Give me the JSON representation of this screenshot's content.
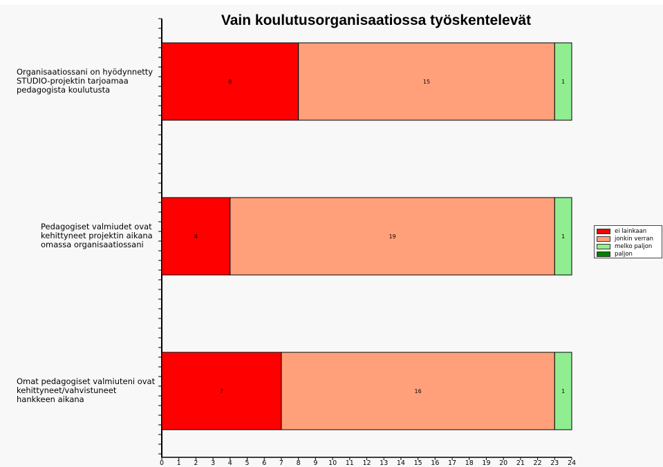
{
  "chart_data": {
    "type": "bar",
    "orientation": "horizontal",
    "stacked": true,
    "title": "Vain koulutusorganisaatiossa työskentelevät",
    "categories": [
      "Organisaatiossani on hyödynnetty STUDIO-projektin tarjoamaa pedagogista koulutusta",
      "Pedagogiset valmiudet ovat kehittyneet projektin aikana omassa organisaatiossani",
      "Omat pedagogiset valmiuteni ovat kehittyneet/vahvistuneet hankkeen aikana"
    ],
    "category_lines": [
      [
        "Organisaatiossani on hyödynnetty",
        "STUDIO-projektin tarjoamaa",
        "pedagogista koulutusta"
      ],
      [
        "Pedagogiset valmiudet ovat",
        "kehittyneet projektin aikana",
        "omassa organisaatiossani"
      ],
      [
        "Omat pedagogiset valmiuteni ovat",
        "kehittyneet/vahvistuneet",
        "hankkeen aikana"
      ]
    ],
    "series": [
      {
        "name": "ei lainkaan",
        "color": "#ff0000",
        "values": [
          8,
          4,
          7
        ]
      },
      {
        "name": "jonkin verran",
        "color": "#ffa07a",
        "values": [
          15,
          19,
          16
        ]
      },
      {
        "name": "melko paljon",
        "color": "#90ee90",
        "values": [
          1,
          1,
          1
        ]
      },
      {
        "name": "paljon",
        "color": "#008000",
        "values": [
          0,
          0,
          0
        ]
      }
    ],
    "xlim": [
      0,
      24
    ],
    "xticks": [
      "0",
      "1",
      "2",
      "3",
      "4",
      "5",
      "6",
      "7",
      "8",
      "9",
      "10",
      "11",
      "12",
      "13",
      "14",
      "15",
      "16",
      "17",
      "18",
      "19",
      "20",
      "21",
      "22",
      "23",
      "24"
    ],
    "legend_position": "right",
    "grid": false
  }
}
